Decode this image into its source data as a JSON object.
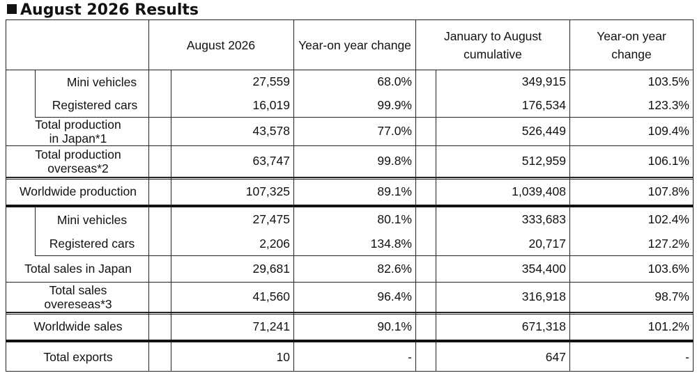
{
  "title": "August 2026 Results",
  "headers": {
    "month": "August 2026",
    "yoy_month": "Year-on year change",
    "cumulative": "January to August cumulative",
    "yoy_cumulative": "Year-on year change"
  },
  "rows": [
    {
      "label": "Mini vehicles",
      "month": "27,559",
      "yoy_month": "68.0%",
      "cumulative": "349,915",
      "yoy_cumulative": "103.5%"
    },
    {
      "label": "Registered cars",
      "month": "16,019",
      "yoy_month": "99.9%",
      "cumulative": "176,534",
      "yoy_cumulative": "123.3%"
    },
    {
      "label": "Total production in Japan*1",
      "month": "43,578",
      "yoy_month": "77.0%",
      "cumulative": "526,449",
      "yoy_cumulative": "109.4%"
    },
    {
      "label": "Total production overseas*2",
      "month": "63,747",
      "yoy_month": "99.8%",
      "cumulative": "512,959",
      "yoy_cumulative": "106.1%"
    },
    {
      "label": "Worldwide production",
      "month": "107,325",
      "yoy_month": "89.1%",
      "cumulative": "1,039,408",
      "yoy_cumulative": "107.8%"
    },
    {
      "label": "Mini vehicles",
      "month": "27,475",
      "yoy_month": "80.1%",
      "cumulative": "333,683",
      "yoy_cumulative": "102.4%"
    },
    {
      "label": "Registered cars",
      "month": "2,206",
      "yoy_month": "134.8%",
      "cumulative": "20,717",
      "yoy_cumulative": "127.2%"
    },
    {
      "label": "Total sales in Japan",
      "month": "29,681",
      "yoy_month": "82.6%",
      "cumulative": "354,400",
      "yoy_cumulative": "103.6%"
    },
    {
      "label": "Total sales overeseas*3",
      "month": "41,560",
      "yoy_month": "96.4%",
      "cumulative": "316,918",
      "yoy_cumulative": "98.7%"
    },
    {
      "label": "Worldwide sales",
      "month": "71,241",
      "yoy_month": "90.1%",
      "cumulative": "671,318",
      "yoy_cumulative": "101.2%"
    },
    {
      "label": "Total exports",
      "month": "10",
      "yoy_month": "-",
      "cumulative": "647",
      "yoy_cumulative": "-"
    }
  ]
}
